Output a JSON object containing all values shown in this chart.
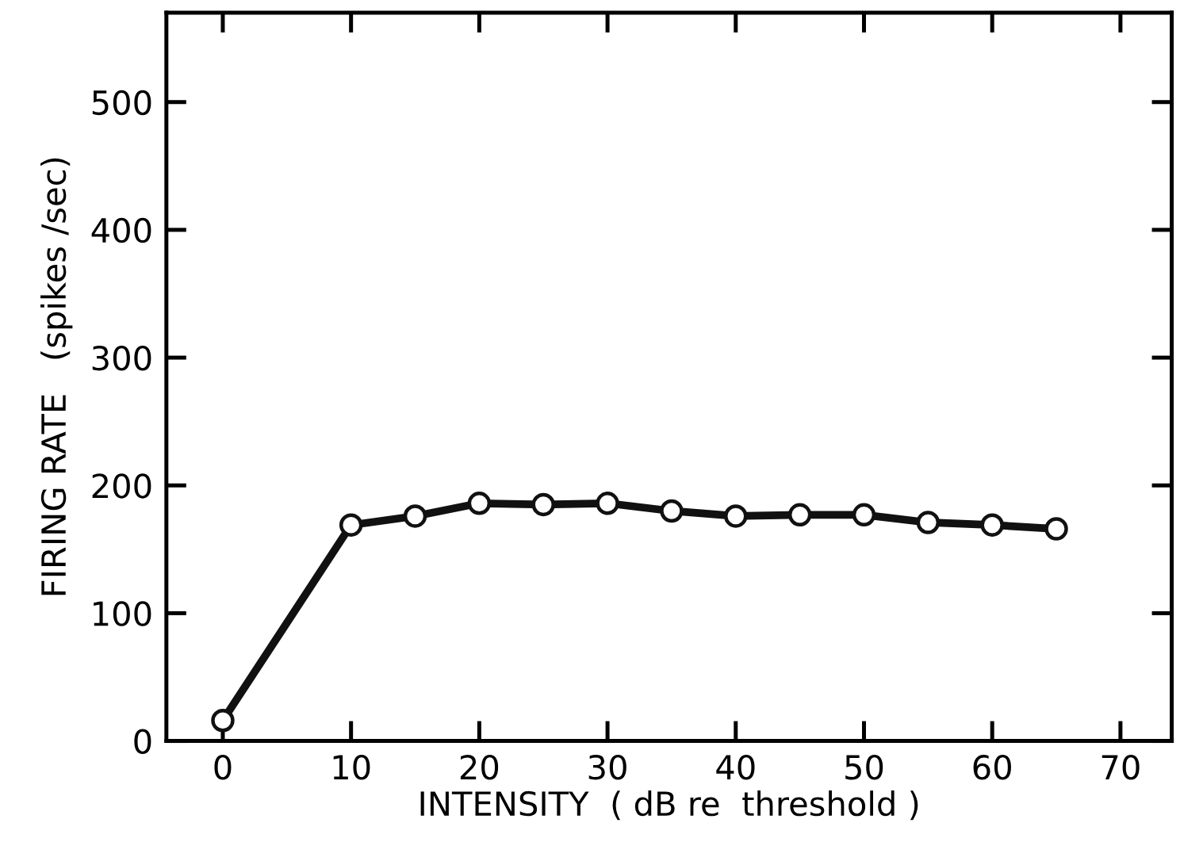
{
  "chart_data": {
    "type": "line",
    "xlabel": "INTENSITY  ( dB re  threshold )",
    "ylabel": "FIRING RATE   (spikes /sec)",
    "x": [
      0,
      10,
      15,
      20,
      25,
      30,
      35,
      40,
      45,
      50,
      55,
      60,
      65
    ],
    "series": [
      {
        "color": "#111111",
        "values": [
          16,
          169,
          176,
          186,
          185,
          186,
          180,
          176,
          177,
          177,
          171,
          169,
          166
        ]
      }
    ],
    "xlim": [
      -4.4,
      74
    ],
    "xticks": [
      0,
      10,
      20,
      30,
      40,
      50,
      60,
      70
    ],
    "ylim": [
      0,
      570
    ],
    "yticks": [
      0,
      100,
      200,
      300,
      400,
      500
    ],
    "marker": "circle",
    "line_style": "solid",
    "grid": false,
    "legend": false
  }
}
